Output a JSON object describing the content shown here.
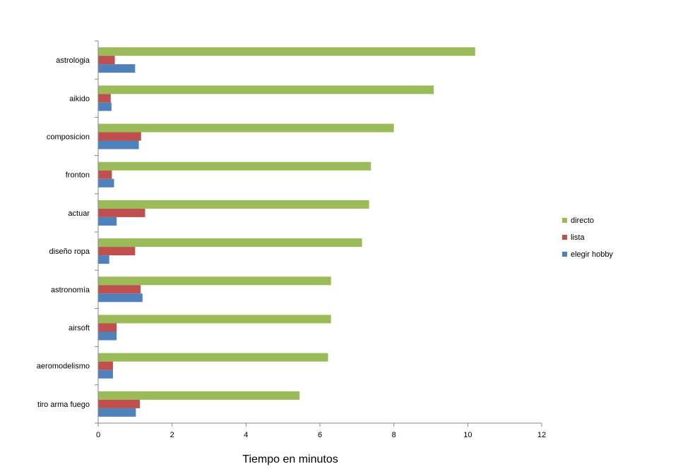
{
  "chart_data": {
    "type": "bar",
    "orientation": "horizontal",
    "categories": [
      "tiro arma fuego",
      "aeromodelismo",
      "airsoft",
      "astronomía",
      "diseño ropa",
      "actuar",
      "fronton",
      "composicion",
      "aikido",
      "astrologia"
    ],
    "series": [
      {
        "name": "elegir hobby",
        "color": "#4f81bd",
        "values": [
          1.02,
          0.4,
          0.5,
          1.2,
          0.3,
          0.5,
          0.43,
          1.1,
          0.36,
          1.0
        ]
      },
      {
        "name": "lista",
        "color": "#c0504d",
        "values": [
          1.13,
          0.4,
          0.5,
          1.15,
          1.0,
          1.27,
          0.37,
          1.16,
          0.34,
          0.45
        ]
      },
      {
        "name": "directo",
        "color": "#9bbb59",
        "values": [
          5.45,
          6.22,
          6.3,
          6.3,
          7.14,
          7.33,
          7.38,
          8.0,
          9.08,
          10.2
        ]
      }
    ],
    "xlabel": "Tiempo en minutos",
    "xlim": [
      0,
      12
    ],
    "xticks": [
      "0",
      "2",
      "4",
      "6",
      "8",
      "10",
      "12"
    ],
    "grid": false,
    "legend": "right"
  }
}
